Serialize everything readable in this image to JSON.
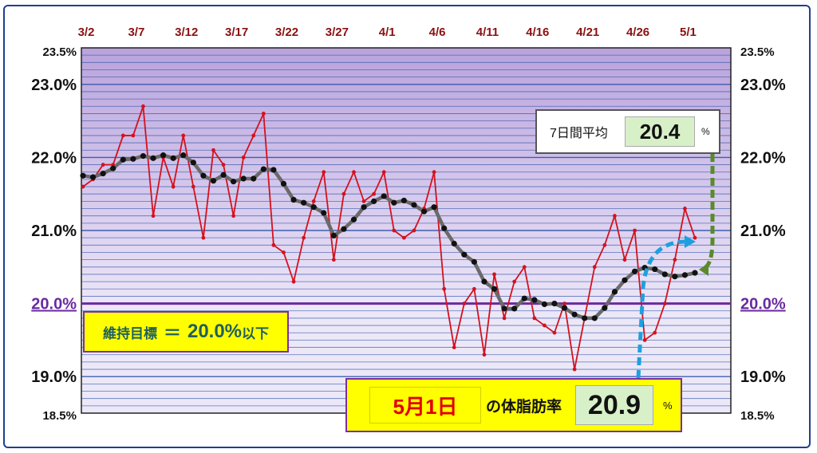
{
  "chart_data": {
    "type": "line",
    "x_tick_labels": [
      "3/2",
      "3/7",
      "3/12",
      "3/17",
      "3/22",
      "3/27",
      "4/1",
      "4/6",
      "4/11",
      "4/16",
      "4/21",
      "4/26",
      "5/1"
    ],
    "y_tick_labels": [
      "23.5%",
      "23.0%",
      "22.0%",
      "21.0%",
      "20.0%",
      "19.0%",
      "18.5%"
    ],
    "ylim": [
      18.5,
      23.5
    ],
    "target_line": 20.0,
    "grid": true,
    "series": [
      {
        "role": "daily",
        "color": "#d4111e",
        "values": [
          21.6,
          21.7,
          21.9,
          21.9,
          22.3,
          22.3,
          22.7,
          21.2,
          22.0,
          21.6,
          22.3,
          21.6,
          20.9,
          22.1,
          21.9,
          21.2,
          22.0,
          22.3,
          22.6,
          20.8,
          20.7,
          20.3,
          20.9,
          21.4,
          21.8,
          20.6,
          21.5,
          21.8,
          21.4,
          21.5,
          21.8,
          21.0,
          20.9,
          21.0,
          21.3,
          21.8,
          20.2,
          19.4,
          20.0,
          20.2,
          19.3,
          20.4,
          19.8,
          20.3,
          20.5,
          19.8,
          19.7,
          19.6,
          20.0,
          19.1,
          19.8,
          20.5,
          20.8,
          21.2,
          20.6,
          21.0,
          19.5,
          19.6,
          20.0,
          20.6,
          21.3,
          20.9
        ]
      },
      {
        "role": "seven_day_average",
        "color": "#111111",
        "values": [
          21.75,
          21.73,
          21.78,
          21.85,
          21.97,
          21.98,
          22.02,
          21.99,
          22.03,
          21.99,
          22.03,
          21.93,
          21.75,
          21.68,
          21.76,
          21.67,
          21.71,
          21.71,
          21.84,
          21.83,
          21.64,
          21.42,
          21.38,
          21.32,
          21.24,
          20.93,
          21.02,
          21.15,
          21.32,
          21.4,
          21.47,
          21.38,
          21.41,
          21.35,
          21.26,
          21.32,
          21.03,
          20.82,
          20.67,
          20.57,
          20.3,
          20.2,
          19.93,
          19.93,
          20.07,
          20.05,
          19.99,
          20.0,
          19.94,
          19.85,
          19.8,
          19.8,
          19.94,
          20.16,
          20.32,
          20.44,
          20.49,
          20.47,
          20.4,
          20.37,
          20.39,
          20.42
        ]
      }
    ]
  },
  "target_box": {
    "label": "維持目標",
    "equals": "＝",
    "value": "20.0%",
    "suffix": "以下"
  },
  "average_box": {
    "label": "7日間平均",
    "value": "20.4",
    "unit": "%"
  },
  "daily_box": {
    "date": "5月1日",
    "label": "の体脂肪率",
    "value": "20.9",
    "unit": "%"
  },
  "colors": {
    "plot_upper": "#cfc0e8",
    "plot_lower": "#ece8f8",
    "grid_line": "#2f52a8",
    "target_line": "#6a2aa0",
    "avg_arrow": "#5a8a2a",
    "daily_arrow": "#1ea0e0"
  }
}
